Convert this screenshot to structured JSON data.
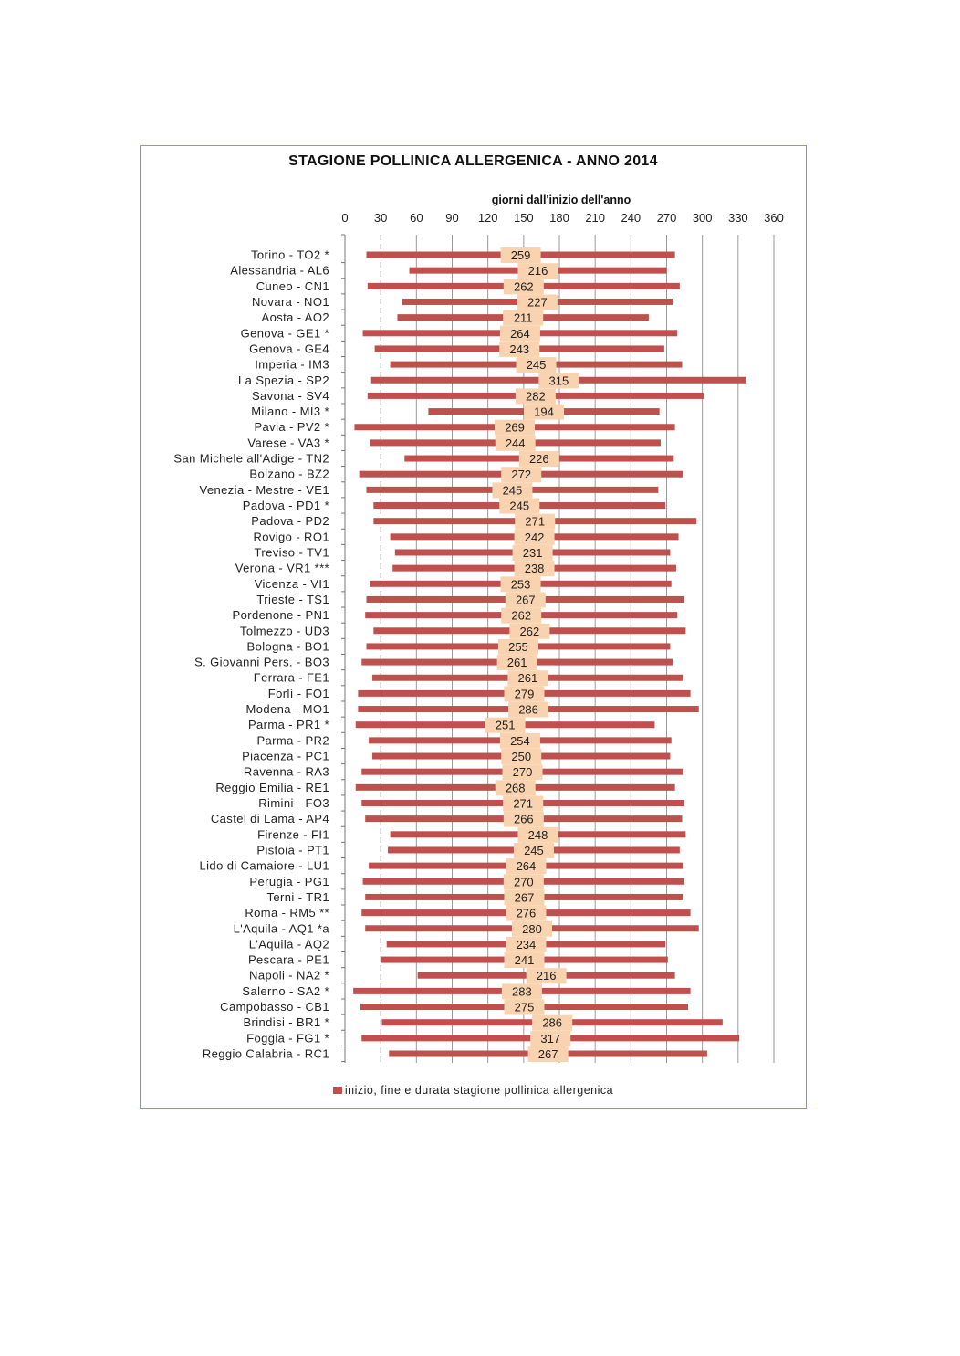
{
  "chart_data": {
    "type": "bar",
    "subtype": "floating-horizontal-bar",
    "title": "STAGIONE POLLINICA ALLERGENICA - ANNO 2014",
    "xlabel": "giorni dall'inizio dell'anno",
    "ylabel": "",
    "xlim": [
      0,
      360
    ],
    "xticks": [
      0,
      30,
      60,
      90,
      120,
      150,
      180,
      210,
      240,
      270,
      300,
      330,
      360
    ],
    "grid": true,
    "legend": {
      "position": "bottom",
      "entries": [
        "inizio, fine e durata stagione pollinica allergenica"
      ]
    },
    "colors": {
      "bar": "#c0504d",
      "label_bg": "#f9d3b0",
      "frame": "#e0862f",
      "grid": "#9a9a9a"
    },
    "categories": [
      "Torino - TO2 *",
      "Alessandria - AL6",
      "Cuneo - CN1",
      "Novara - NO1",
      "Aosta - AO2",
      "Genova - GE1 *",
      "Genova - GE4",
      "Imperia - IM3",
      "La Spezia - SP2",
      "Savona - SV4",
      "Milano - MI3 *",
      "Pavia - PV2 *",
      "Varese - VA3 *",
      "San Michele all'Adige - TN2",
      "Bolzano - BZ2",
      "Venezia - Mestre - VE1",
      "Padova - PD1 *",
      "Padova - PD2",
      "Rovigo - RO1",
      "Treviso - TV1",
      "Verona - VR1 ***",
      "Vicenza - VI1",
      "Trieste - TS1",
      "Pordenone - PN1",
      "Tolmezzo - UD3",
      "Bologna - BO1",
      "S. Giovanni Pers. - BO3",
      "Ferrara - FE1",
      "Forlì - FO1",
      "Modena - MO1",
      "Parma - PR1 *",
      "Parma - PR2",
      "Piacenza - PC1",
      "Ravenna - RA3",
      "Reggio Emilia - RE1",
      "Rimini - FO3",
      "Castel di Lama - AP4",
      "Firenze - FI1",
      "Pistoia - PT1",
      "Lido di Camaiore - LU1",
      "Perugia - PG1",
      "Terni - TR1",
      "Roma - RM5 **",
      "L'Aquila - AQ1 *a",
      "L'Aquila - AQ2",
      "Pescara - PE1",
      "Napoli - NA2 *",
      "Salerno - SA2 *",
      "Campobasso - CB1",
      "Brindisi - BR1 *",
      "Foggia - FG1 *",
      "Reggio Calabria - RC1"
    ],
    "start": [
      18,
      54,
      19,
      48,
      44,
      15,
      25,
      38,
      22,
      19,
      70,
      8,
      21,
      50,
      12,
      18,
      24,
      24,
      38,
      42,
      40,
      21,
      18,
      17,
      24,
      18,
      14,
      23,
      11,
      11,
      9,
      20,
      23,
      14,
      9,
      14,
      17,
      38,
      36,
      20,
      15,
      17,
      14,
      17,
      35,
      30,
      61,
      7,
      13,
      31,
      14,
      37
    ],
    "end": [
      277,
      270,
      281,
      275,
      255,
      279,
      268,
      283,
      337,
      301,
      264,
      277,
      265,
      276,
      284,
      263,
      269,
      295,
      280,
      273,
      278,
      274,
      285,
      279,
      286,
      273,
      275,
      284,
      290,
      297,
      260,
      274,
      273,
      284,
      277,
      285,
      283,
      286,
      281,
      284,
      285,
      284,
      290,
      297,
      269,
      271,
      277,
      290,
      288,
      317,
      331,
      304
    ],
    "values": [
      259,
      216,
      262,
      227,
      211,
      264,
      243,
      245,
      315,
      282,
      194,
      269,
      244,
      226,
      272,
      245,
      245,
      271,
      242,
      231,
      238,
      253,
      267,
      262,
      262,
      255,
      261,
      261,
      279,
      286,
      251,
      254,
      250,
      270,
      268,
      271,
      266,
      248,
      245,
      264,
      270,
      267,
      276,
      280,
      234,
      241,
      216,
      283,
      275,
      286,
      317,
      267
    ]
  }
}
